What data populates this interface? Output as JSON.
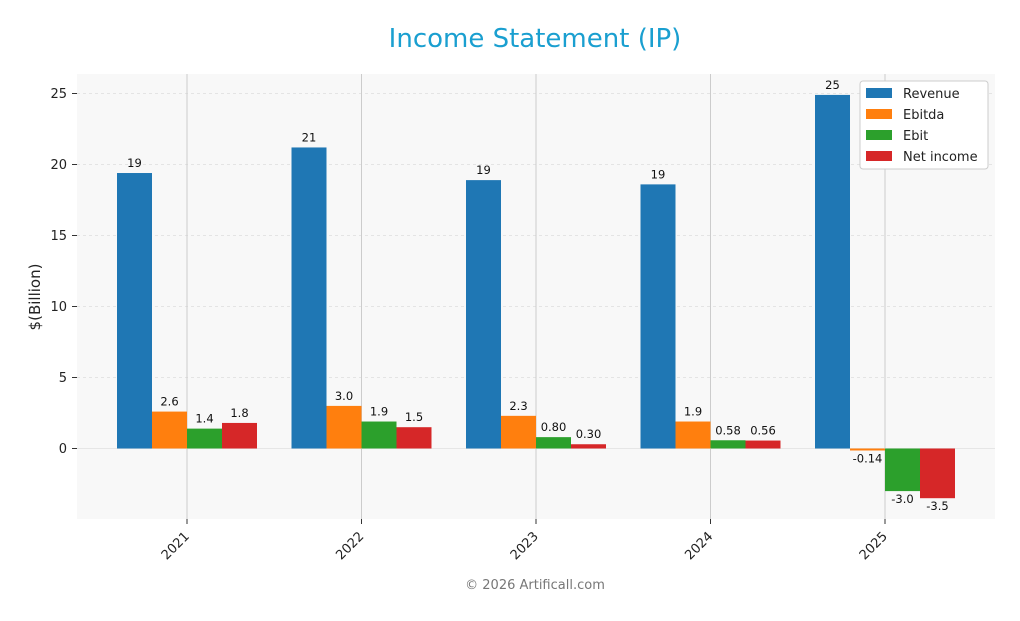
{
  "chart_data": {
    "type": "bar",
    "title": "Income Statement (IP)",
    "ylabel": "$(Billion)",
    "xlabel": "",
    "categories": [
      "2021",
      "2022",
      "2023",
      "2024",
      "2025"
    ],
    "ylim": [
      -5,
      26.5
    ],
    "yticks": [
      0,
      5,
      10,
      15,
      20,
      25
    ],
    "grid": true,
    "legend_position": "top-right",
    "series": [
      {
        "name": "Revenue",
        "color": "#1f77b4",
        "values": [
          19.4,
          21.2,
          18.9,
          18.6,
          24.9
        ],
        "labels": [
          "19",
          "21",
          "19",
          "19",
          "25"
        ]
      },
      {
        "name": "Ebitda",
        "color": "#ff7f0e",
        "values": [
          2.6,
          3.0,
          2.3,
          1.9,
          -0.14
        ],
        "labels": [
          "2.6",
          "3.0",
          "2.3",
          "1.9",
          "-0.14"
        ]
      },
      {
        "name": "Ebit",
        "color": "#2ca02c",
        "values": [
          1.4,
          1.9,
          0.8,
          0.58,
          -3.0
        ],
        "labels": [
          "1.4",
          "1.9",
          "0.80",
          "0.58",
          "-3.0"
        ]
      },
      {
        "name": "Net income",
        "color": "#d62728",
        "values": [
          1.8,
          1.5,
          0.3,
          0.56,
          -3.5
        ],
        "labels": [
          "1.8",
          "1.5",
          "0.30",
          "0.56",
          "-3.5"
        ]
      }
    ]
  },
  "colors": {
    "title": "#1a9fd0",
    "plot_bg": "#f8f8f8"
  },
  "footer": "© 2026 Artificall.com"
}
